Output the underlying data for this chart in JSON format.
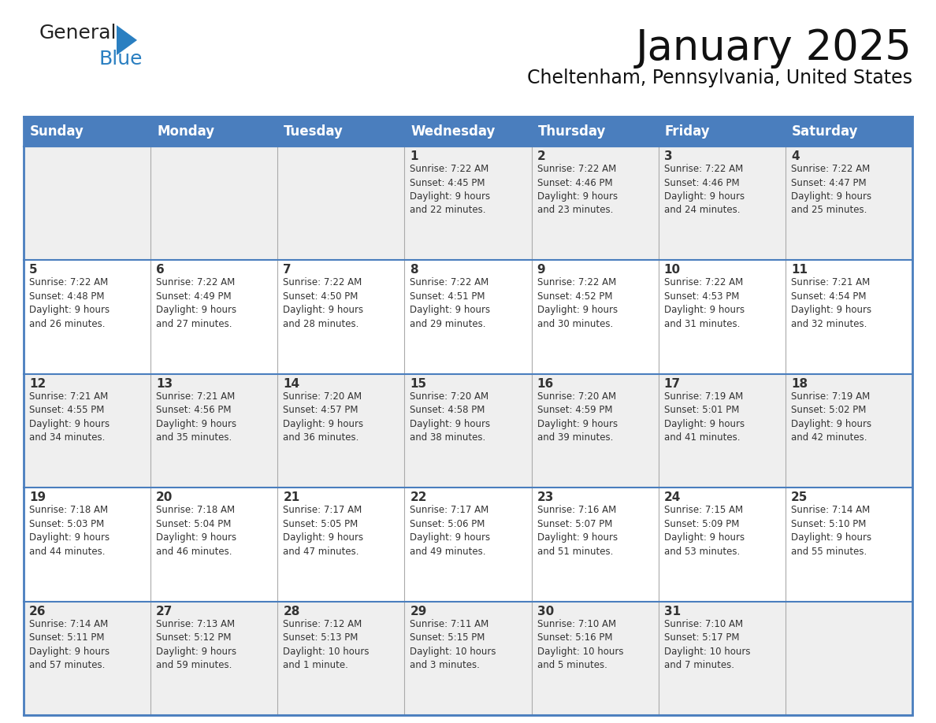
{
  "title": "January 2025",
  "subtitle": "Cheltenham, Pennsylvania, United States",
  "header_color": "#4a7ebe",
  "header_text_color": "#ffffff",
  "cell_bg_even": "#efefef",
  "cell_bg_odd": "#ffffff",
  "row_divider_color": "#4a7ebe",
  "cell_divider_color": "#cccccc",
  "text_color": "#333333",
  "days_of_week": [
    "Sunday",
    "Monday",
    "Tuesday",
    "Wednesday",
    "Thursday",
    "Friday",
    "Saturday"
  ],
  "weeks": [
    [
      {
        "day": "",
        "info": ""
      },
      {
        "day": "",
        "info": ""
      },
      {
        "day": "",
        "info": ""
      },
      {
        "day": "1",
        "info": "Sunrise: 7:22 AM\nSunset: 4:45 PM\nDaylight: 9 hours\nand 22 minutes."
      },
      {
        "day": "2",
        "info": "Sunrise: 7:22 AM\nSunset: 4:46 PM\nDaylight: 9 hours\nand 23 minutes."
      },
      {
        "day": "3",
        "info": "Sunrise: 7:22 AM\nSunset: 4:46 PM\nDaylight: 9 hours\nand 24 minutes."
      },
      {
        "day": "4",
        "info": "Sunrise: 7:22 AM\nSunset: 4:47 PM\nDaylight: 9 hours\nand 25 minutes."
      }
    ],
    [
      {
        "day": "5",
        "info": "Sunrise: 7:22 AM\nSunset: 4:48 PM\nDaylight: 9 hours\nand 26 minutes."
      },
      {
        "day": "6",
        "info": "Sunrise: 7:22 AM\nSunset: 4:49 PM\nDaylight: 9 hours\nand 27 minutes."
      },
      {
        "day": "7",
        "info": "Sunrise: 7:22 AM\nSunset: 4:50 PM\nDaylight: 9 hours\nand 28 minutes."
      },
      {
        "day": "8",
        "info": "Sunrise: 7:22 AM\nSunset: 4:51 PM\nDaylight: 9 hours\nand 29 minutes."
      },
      {
        "day": "9",
        "info": "Sunrise: 7:22 AM\nSunset: 4:52 PM\nDaylight: 9 hours\nand 30 minutes."
      },
      {
        "day": "10",
        "info": "Sunrise: 7:22 AM\nSunset: 4:53 PM\nDaylight: 9 hours\nand 31 minutes."
      },
      {
        "day": "11",
        "info": "Sunrise: 7:21 AM\nSunset: 4:54 PM\nDaylight: 9 hours\nand 32 minutes."
      }
    ],
    [
      {
        "day": "12",
        "info": "Sunrise: 7:21 AM\nSunset: 4:55 PM\nDaylight: 9 hours\nand 34 minutes."
      },
      {
        "day": "13",
        "info": "Sunrise: 7:21 AM\nSunset: 4:56 PM\nDaylight: 9 hours\nand 35 minutes."
      },
      {
        "day": "14",
        "info": "Sunrise: 7:20 AM\nSunset: 4:57 PM\nDaylight: 9 hours\nand 36 minutes."
      },
      {
        "day": "15",
        "info": "Sunrise: 7:20 AM\nSunset: 4:58 PM\nDaylight: 9 hours\nand 38 minutes."
      },
      {
        "day": "16",
        "info": "Sunrise: 7:20 AM\nSunset: 4:59 PM\nDaylight: 9 hours\nand 39 minutes."
      },
      {
        "day": "17",
        "info": "Sunrise: 7:19 AM\nSunset: 5:01 PM\nDaylight: 9 hours\nand 41 minutes."
      },
      {
        "day": "18",
        "info": "Sunrise: 7:19 AM\nSunset: 5:02 PM\nDaylight: 9 hours\nand 42 minutes."
      }
    ],
    [
      {
        "day": "19",
        "info": "Sunrise: 7:18 AM\nSunset: 5:03 PM\nDaylight: 9 hours\nand 44 minutes."
      },
      {
        "day": "20",
        "info": "Sunrise: 7:18 AM\nSunset: 5:04 PM\nDaylight: 9 hours\nand 46 minutes."
      },
      {
        "day": "21",
        "info": "Sunrise: 7:17 AM\nSunset: 5:05 PM\nDaylight: 9 hours\nand 47 minutes."
      },
      {
        "day": "22",
        "info": "Sunrise: 7:17 AM\nSunset: 5:06 PM\nDaylight: 9 hours\nand 49 minutes."
      },
      {
        "day": "23",
        "info": "Sunrise: 7:16 AM\nSunset: 5:07 PM\nDaylight: 9 hours\nand 51 minutes."
      },
      {
        "day": "24",
        "info": "Sunrise: 7:15 AM\nSunset: 5:09 PM\nDaylight: 9 hours\nand 53 minutes."
      },
      {
        "day": "25",
        "info": "Sunrise: 7:14 AM\nSunset: 5:10 PM\nDaylight: 9 hours\nand 55 minutes."
      }
    ],
    [
      {
        "day": "26",
        "info": "Sunrise: 7:14 AM\nSunset: 5:11 PM\nDaylight: 9 hours\nand 57 minutes."
      },
      {
        "day": "27",
        "info": "Sunrise: 7:13 AM\nSunset: 5:12 PM\nDaylight: 9 hours\nand 59 minutes."
      },
      {
        "day": "28",
        "info": "Sunrise: 7:12 AM\nSunset: 5:13 PM\nDaylight: 10 hours\nand 1 minute."
      },
      {
        "day": "29",
        "info": "Sunrise: 7:11 AM\nSunset: 5:15 PM\nDaylight: 10 hours\nand 3 minutes."
      },
      {
        "day": "30",
        "info": "Sunrise: 7:10 AM\nSunset: 5:16 PM\nDaylight: 10 hours\nand 5 minutes."
      },
      {
        "day": "31",
        "info": "Sunrise: 7:10 AM\nSunset: 5:17 PM\nDaylight: 10 hours\nand 7 minutes."
      },
      {
        "day": "",
        "info": ""
      }
    ]
  ],
  "logo_color_general": "#222222",
  "logo_color_blue": "#2a7fc1",
  "logo_triangle_color": "#2a7fc1",
  "title_fontsize": 38,
  "subtitle_fontsize": 17,
  "header_fontsize": 12,
  "day_num_fontsize": 11,
  "info_fontsize": 8.5
}
